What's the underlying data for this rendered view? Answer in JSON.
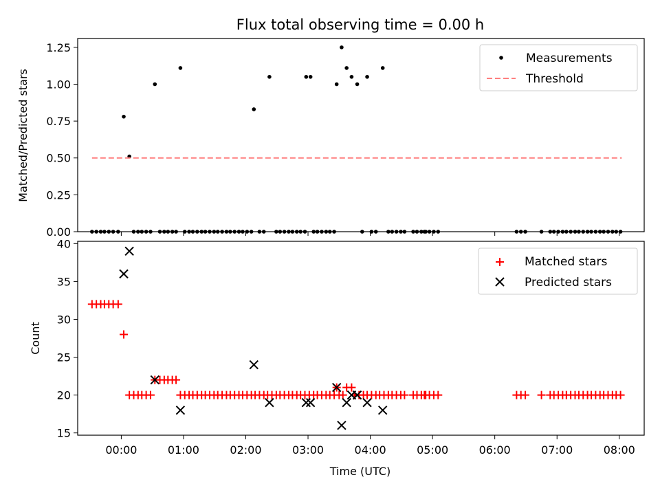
{
  "chart_data": [
    {
      "type": "scatter",
      "title": "Flux total observing time = 0.00 h",
      "xlabel": "",
      "ylabel": "Matched/Predicted stars",
      "xlim": [
        -0.7,
        8.4
      ],
      "ylim": [
        0,
        1.31
      ],
      "yticks": [
        0,
        0.25,
        0.5,
        0.75,
        1.0,
        1.25
      ],
      "ytick_labels": [
        "0.00",
        "0.25",
        "0.50",
        "0.75",
        "1.00",
        "1.25"
      ],
      "legend_position": "top-right",
      "colors": {
        "measurements": "#000000",
        "threshold": "#ff7f7f"
      },
      "series": [
        {
          "name": "Measurements",
          "style": "dot",
          "points": [
            [
              -0.47,
              0
            ],
            [
              -0.4,
              0
            ],
            [
              -0.33,
              0
            ],
            [
              -0.27,
              0
            ],
            [
              -0.2,
              0
            ],
            [
              -0.13,
              0
            ],
            [
              -0.05,
              0
            ],
            [
              0.04,
              0.78
            ],
            [
              0.13,
              0.51
            ],
            [
              0.2,
              0
            ],
            [
              0.27,
              0
            ],
            [
              0.33,
              0
            ],
            [
              0.4,
              0
            ],
            [
              0.47,
              0
            ],
            [
              0.54,
              1.0
            ],
            [
              0.62,
              0
            ],
            [
              0.69,
              0
            ],
            [
              0.75,
              0
            ],
            [
              0.82,
              0
            ],
            [
              0.88,
              0
            ],
            [
              0.95,
              1.11
            ],
            [
              1.02,
              0
            ],
            [
              1.09,
              0
            ],
            [
              1.15,
              0
            ],
            [
              1.22,
              0
            ],
            [
              1.29,
              0
            ],
            [
              1.35,
              0
            ],
            [
              1.42,
              0
            ],
            [
              1.49,
              0
            ],
            [
              1.55,
              0
            ],
            [
              1.62,
              0
            ],
            [
              1.69,
              0
            ],
            [
              1.75,
              0
            ],
            [
              1.82,
              0
            ],
            [
              1.89,
              0
            ],
            [
              1.95,
              0
            ],
            [
              2.02,
              0
            ],
            [
              2.09,
              0
            ],
            [
              2.13,
              0.83
            ],
            [
              2.22,
              0
            ],
            [
              2.29,
              0
            ],
            [
              2.38,
              1.05
            ],
            [
              2.49,
              0
            ],
            [
              2.55,
              0
            ],
            [
              2.62,
              0
            ],
            [
              2.69,
              0
            ],
            [
              2.75,
              0
            ],
            [
              2.82,
              0
            ],
            [
              2.88,
              0
            ],
            [
              2.95,
              0
            ],
            [
              2.97,
              1.05
            ],
            [
              3.04,
              1.05
            ],
            [
              3.09,
              0
            ],
            [
              3.15,
              0
            ],
            [
              3.22,
              0
            ],
            [
              3.29,
              0
            ],
            [
              3.35,
              0
            ],
            [
              3.42,
              0
            ],
            [
              3.46,
              1.0
            ],
            [
              3.54,
              1.25
            ],
            [
              3.62,
              1.11
            ],
            [
              3.7,
              1.05
            ],
            [
              3.79,
              1.0
            ],
            [
              3.87,
              0
            ],
            [
              3.95,
              1.05
            ],
            [
              4.02,
              0
            ],
            [
              4.09,
              0
            ],
            [
              4.2,
              1.11
            ],
            [
              4.29,
              0
            ],
            [
              4.35,
              0
            ],
            [
              4.42,
              0
            ],
            [
              4.49,
              0
            ],
            [
              4.55,
              0
            ],
            [
              4.69,
              0
            ],
            [
              4.75,
              0
            ],
            [
              4.82,
              0
            ],
            [
              4.87,
              0
            ],
            [
              4.89,
              0
            ],
            [
              4.95,
              0
            ],
            [
              5.02,
              0
            ],
            [
              5.09,
              0
            ],
            [
              6.35,
              0
            ],
            [
              6.42,
              0
            ],
            [
              6.49,
              0
            ],
            [
              6.75,
              0
            ],
            [
              6.89,
              0
            ],
            [
              6.95,
              0
            ],
            [
              7.02,
              0
            ],
            [
              7.09,
              0
            ],
            [
              7.15,
              0
            ],
            [
              7.22,
              0
            ],
            [
              7.29,
              0
            ],
            [
              7.35,
              0
            ],
            [
              7.42,
              0
            ],
            [
              7.49,
              0
            ],
            [
              7.55,
              0
            ],
            [
              7.62,
              0
            ],
            [
              7.69,
              0
            ],
            [
              7.75,
              0
            ],
            [
              7.82,
              0
            ],
            [
              7.89,
              0
            ],
            [
              7.95,
              0
            ],
            [
              8.02,
              0
            ]
          ]
        },
        {
          "name": "Threshold",
          "style": "dashed-line",
          "points": [
            [
              -0.47,
              0.5
            ],
            [
              8.04,
              0.5
            ]
          ]
        }
      ]
    },
    {
      "type": "scatter",
      "title": "",
      "xlabel": "Time (UTC)",
      "ylabel": "Count",
      "xlim": [
        -0.7,
        8.4
      ],
      "ylim": [
        14.7,
        40.3
      ],
      "xticks": [
        0,
        1,
        2,
        3,
        4,
        5,
        6,
        7,
        8
      ],
      "xtick_labels": [
        "00:00",
        "01:00",
        "02:00",
        "03:00",
        "04:00",
        "05:00",
        "06:00",
        "07:00",
        "08:00"
      ],
      "yticks": [
        15,
        20,
        25,
        30,
        35,
        40
      ],
      "ytick_labels": [
        "15",
        "20",
        "25",
        "30",
        "35",
        "40"
      ],
      "legend_position": "top-right",
      "colors": {
        "matched": "#ff0000",
        "predicted": "#000000"
      },
      "series": [
        {
          "name": "Matched stars",
          "marker": "plus",
          "points": [
            [
              -0.47,
              32
            ],
            [
              -0.4,
              32
            ],
            [
              -0.33,
              32
            ],
            [
              -0.27,
              32
            ],
            [
              -0.2,
              32
            ],
            [
              -0.13,
              32
            ],
            [
              -0.05,
              32
            ],
            [
              0.04,
              28
            ],
            [
              0.13,
              20
            ],
            [
              0.2,
              20
            ],
            [
              0.27,
              20
            ],
            [
              0.33,
              20
            ],
            [
              0.4,
              20
            ],
            [
              0.47,
              20
            ],
            [
              0.54,
              22
            ],
            [
              0.62,
              22
            ],
            [
              0.69,
              22
            ],
            [
              0.75,
              22
            ],
            [
              0.82,
              22
            ],
            [
              0.88,
              22
            ],
            [
              0.95,
              20
            ],
            [
              1.02,
              20
            ],
            [
              1.09,
              20
            ],
            [
              1.15,
              20
            ],
            [
              1.22,
              20
            ],
            [
              1.29,
              20
            ],
            [
              1.35,
              20
            ],
            [
              1.42,
              20
            ],
            [
              1.49,
              20
            ],
            [
              1.55,
              20
            ],
            [
              1.62,
              20
            ],
            [
              1.69,
              20
            ],
            [
              1.75,
              20
            ],
            [
              1.82,
              20
            ],
            [
              1.89,
              20
            ],
            [
              1.95,
              20
            ],
            [
              2.02,
              20
            ],
            [
              2.09,
              20
            ],
            [
              2.15,
              20
            ],
            [
              2.22,
              20
            ],
            [
              2.29,
              20
            ],
            [
              2.35,
              20
            ],
            [
              2.42,
              20
            ],
            [
              2.49,
              20
            ],
            [
              2.55,
              20
            ],
            [
              2.62,
              20
            ],
            [
              2.69,
              20
            ],
            [
              2.75,
              20
            ],
            [
              2.82,
              20
            ],
            [
              2.88,
              20
            ],
            [
              2.95,
              20
            ],
            [
              3.02,
              20
            ],
            [
              3.09,
              20
            ],
            [
              3.15,
              20
            ],
            [
              3.22,
              20
            ],
            [
              3.29,
              20
            ],
            [
              3.35,
              20
            ],
            [
              3.42,
              20
            ],
            [
              3.46,
              21
            ],
            [
              3.5,
              20
            ],
            [
              3.56,
              20
            ],
            [
              3.62,
              21
            ],
            [
              3.7,
              21
            ],
            [
              3.75,
              20
            ],
            [
              3.82,
              20
            ],
            [
              3.89,
              20
            ],
            [
              3.95,
              20
            ],
            [
              4.02,
              20
            ],
            [
              4.09,
              20
            ],
            [
              4.15,
              20
            ],
            [
              4.22,
              20
            ],
            [
              4.29,
              20
            ],
            [
              4.35,
              20
            ],
            [
              4.42,
              20
            ],
            [
              4.49,
              20
            ],
            [
              4.55,
              20
            ],
            [
              4.69,
              20
            ],
            [
              4.75,
              20
            ],
            [
              4.82,
              20
            ],
            [
              4.87,
              20
            ],
            [
              4.89,
              20
            ],
            [
              4.95,
              20
            ],
            [
              5.02,
              20
            ],
            [
              5.09,
              20
            ],
            [
              6.35,
              20
            ],
            [
              6.42,
              20
            ],
            [
              6.49,
              20
            ],
            [
              6.75,
              20
            ],
            [
              6.89,
              20
            ],
            [
              6.95,
              20
            ],
            [
              7.02,
              20
            ],
            [
              7.09,
              20
            ],
            [
              7.15,
              20
            ],
            [
              7.22,
              20
            ],
            [
              7.29,
              20
            ],
            [
              7.35,
              20
            ],
            [
              7.42,
              20
            ],
            [
              7.49,
              20
            ],
            [
              7.55,
              20
            ],
            [
              7.62,
              20
            ],
            [
              7.69,
              20
            ],
            [
              7.75,
              20
            ],
            [
              7.82,
              20
            ],
            [
              7.89,
              20
            ],
            [
              7.95,
              20
            ],
            [
              8.02,
              20
            ]
          ]
        },
        {
          "name": "Predicted stars",
          "marker": "x",
          "points": [
            [
              0.04,
              36
            ],
            [
              0.13,
              39
            ],
            [
              0.54,
              22
            ],
            [
              0.95,
              18
            ],
            [
              2.13,
              24
            ],
            [
              2.38,
              19
            ],
            [
              2.97,
              19
            ],
            [
              3.04,
              19
            ],
            [
              3.46,
              21
            ],
            [
              3.54,
              16
            ],
            [
              3.62,
              19
            ],
            [
              3.7,
              20
            ],
            [
              3.79,
              20
            ],
            [
              3.95,
              19
            ],
            [
              4.2,
              18
            ]
          ]
        }
      ]
    }
  ]
}
